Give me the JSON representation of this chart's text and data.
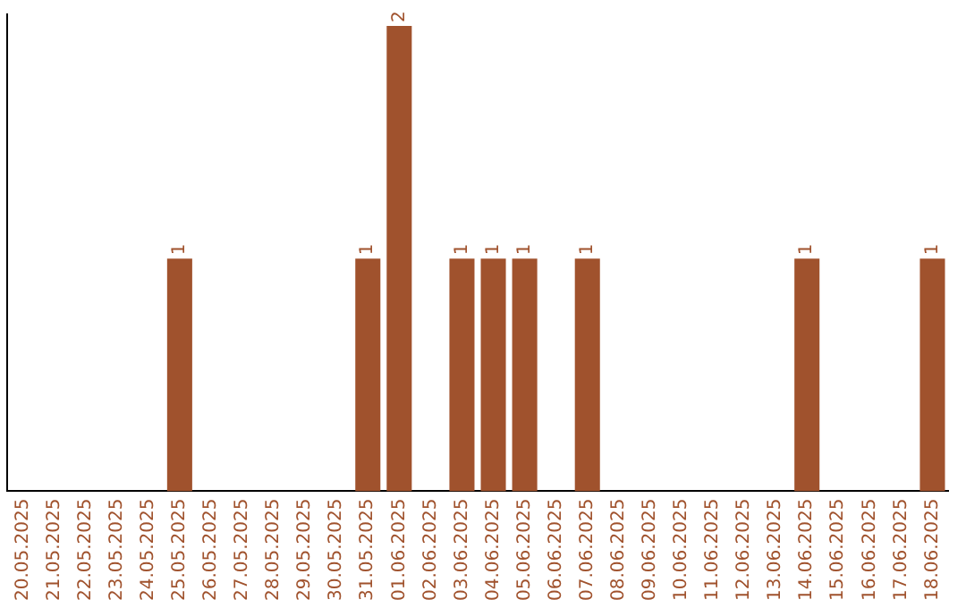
{
  "chart_data": {
    "type": "bar",
    "categories": [
      "20.05.2025",
      "21.05.2025",
      "22.05.2025",
      "23.05.2025",
      "24.05.2025",
      "25.05.2025",
      "26.05.2025",
      "27.05.2025",
      "28.05.2025",
      "29.05.2025",
      "30.05.2025",
      "31.05.2025",
      "01.06.2025",
      "02.06.2025",
      "03.06.2025",
      "04.06.2025",
      "05.06.2025",
      "06.06.2025",
      "07.06.2025",
      "08.06.2025",
      "09.06.2025",
      "10.06.2025",
      "11.06.2025",
      "12.06.2025",
      "13.06.2025",
      "14.06.2025",
      "15.06.2025",
      "16.06.2025",
      "17.06.2025",
      "18.06.2025"
    ],
    "values": [
      0,
      0,
      0,
      0,
      0,
      1,
      0,
      0,
      0,
      0,
      0,
      1,
      2,
      0,
      1,
      1,
      1,
      0,
      1,
      0,
      0,
      0,
      0,
      0,
      0,
      1,
      0,
      0,
      0,
      1
    ],
    "value_labels": [
      null,
      null,
      null,
      null,
      null,
      "1",
      null,
      null,
      null,
      null,
      null,
      "1",
      "2",
      null,
      "1",
      "1",
      "1",
      null,
      "1",
      null,
      null,
      null,
      null,
      null,
      null,
      "1",
      null,
      null,
      null,
      "1"
    ],
    "color": "#a0522d",
    "ylim": [
      0,
      2.05
    ],
    "tick_labels": "x",
    "grid": false,
    "legend": false
  }
}
